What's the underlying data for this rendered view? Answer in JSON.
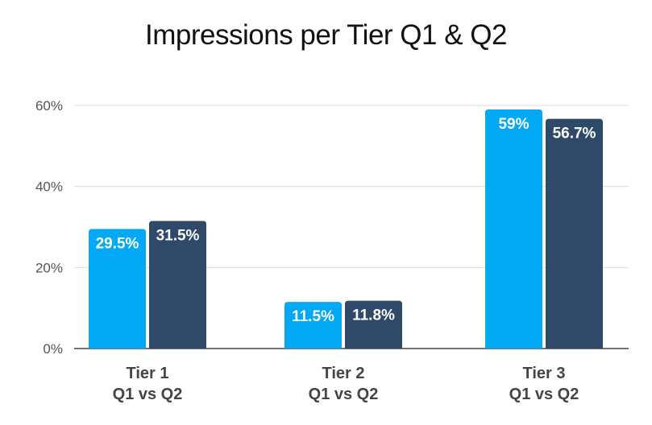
{
  "chart_data": {
    "type": "bar",
    "title": "Impressions per Tier Q1 & Q2",
    "xlabel": "",
    "ylabel": "",
    "ylim": [
      0,
      60
    ],
    "yticks": [
      "0%",
      "20%",
      "40%",
      "60%"
    ],
    "ytick_values": [
      0,
      20,
      40,
      60
    ],
    "grid": true,
    "categories": [
      [
        "Tier 1",
        "Q1 vs Q2"
      ],
      [
        "Tier 2",
        "Q1 vs Q2"
      ],
      [
        "Tier 3",
        "Q1 vs Q2"
      ]
    ],
    "series": [
      {
        "values": [
          29.5,
          11.5,
          59
        ],
        "labels": [
          "29.5%",
          "11.5%",
          "59%"
        ],
        "color": "#03A9F4"
      },
      {
        "values": [
          31.5,
          11.8,
          56.7
        ],
        "labels": [
          "31.5%",
          "11.8%",
          "56.7%"
        ],
        "color": "#2E4A68"
      }
    ]
  }
}
